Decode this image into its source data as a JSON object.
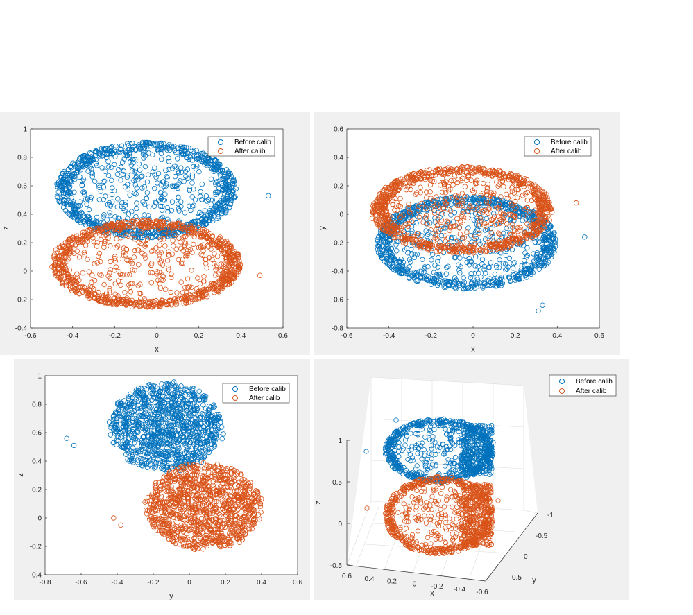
{
  "colors": {
    "before": "#0072BD",
    "after": "#D95319",
    "axis": "#262626",
    "grid": "#dcdcdc"
  },
  "chart_data": [
    {
      "type": "scatter",
      "xlabel": "x",
      "ylabel": "z",
      "xlim": [
        -0.6,
        0.6
      ],
      "ylim": [
        -0.4,
        1.0
      ],
      "xticks": [
        -0.6,
        -0.4,
        -0.2,
        0,
        0.2,
        0.4,
        0.6
      ],
      "yticks": [
        -0.4,
        -0.2,
        0,
        0.2,
        0.4,
        0.6,
        0.8,
        1
      ],
      "legend": {
        "location": "top-right",
        "entries": [
          "Before calib",
          "After calib"
        ]
      },
      "series": [
        {
          "name": "Before calib",
          "shape": "ellipse-ring",
          "center": [
            -0.05,
            0.57
          ],
          "radii": [
            0.42,
            0.33
          ],
          "outliers": [
            [
              0.53,
              0.53
            ],
            [
              -0.44,
              0.7
            ]
          ]
        },
        {
          "name": "After calib",
          "shape": "ellipse-ring",
          "center": [
            -0.05,
            0.05
          ],
          "radii": [
            0.44,
            0.3
          ],
          "outliers": [
            [
              0.49,
              -0.03
            ],
            [
              -0.48,
              0.15
            ]
          ]
        }
      ]
    },
    {
      "type": "scatter",
      "xlabel": "x",
      "ylabel": "y",
      "xlim": [
        -0.6,
        0.6
      ],
      "ylim": [
        -0.8,
        0.6
      ],
      "xticks": [
        -0.6,
        -0.4,
        -0.2,
        0,
        0.2,
        0.4,
        0.6
      ],
      "yticks": [
        -0.8,
        -0.6,
        -0.4,
        -0.2,
        0,
        0.2,
        0.4,
        0.6
      ],
      "legend": {
        "location": "top-right",
        "entries": [
          "Before calib",
          "After calib"
        ]
      },
      "series": [
        {
          "name": "Before calib",
          "shape": "ellipse-ring",
          "center": [
            -0.03,
            -0.2
          ],
          "radii": [
            0.42,
            0.32
          ],
          "outliers": [
            [
              0.53,
              -0.16
            ],
            [
              0.31,
              -0.68
            ],
            [
              0.33,
              -0.64
            ],
            [
              -0.45,
              -0.27
            ]
          ]
        },
        {
          "name": "After calib",
          "shape": "ellipse-ring",
          "center": [
            -0.05,
            0.03
          ],
          "radii": [
            0.42,
            0.3
          ],
          "outliers": [
            [
              0.49,
              0.08
            ],
            [
              -0.48,
              -0.03
            ]
          ]
        }
      ]
    },
    {
      "type": "scatter",
      "xlabel": "y",
      "ylabel": "z",
      "xlim": [
        -0.8,
        0.6
      ],
      "ylim": [
        -0.4,
        1.0
      ],
      "xticks": [
        -0.8,
        -0.6,
        -0.4,
        -0.2,
        0,
        0.2,
        0.4,
        0.6
      ],
      "yticks": [
        -0.4,
        -0.2,
        0,
        0.2,
        0.4,
        0.6,
        0.8,
        1
      ],
      "legend": {
        "location": "top-right",
        "entries": [
          "Before calib",
          "After calib"
        ]
      },
      "series": [
        {
          "name": "Before calib",
          "shape": "ellipse-filled",
          "center": [
            -0.13,
            0.64
          ],
          "radii": [
            0.32,
            0.32
          ],
          "outliers": [
            [
              -0.68,
              0.56
            ],
            [
              -0.64,
              0.51
            ]
          ]
        },
        {
          "name": "After calib",
          "shape": "ellipse-filled",
          "center": [
            0.08,
            0.08
          ],
          "radii": [
            0.33,
            0.31
          ],
          "outliers": [
            [
              -0.42,
              0.0
            ],
            [
              -0.38,
              -0.05
            ]
          ]
        }
      ]
    },
    {
      "type": "scatter",
      "projection": "3d",
      "xlabel": "x",
      "ylabel": "y",
      "zlabel": "z",
      "xticks": [
        "0.6",
        "0.4",
        "0.2",
        "0",
        "-0.2",
        "-0.4",
        "-0.6"
      ],
      "yticks": [
        "-1",
        "-0.5",
        "0",
        "0.5"
      ],
      "zticks": [
        "-0.5",
        "0",
        "0.5",
        "1"
      ],
      "legend": {
        "location": "top-right",
        "entries": [
          "Before calib",
          "After calib"
        ]
      },
      "series": [
        {
          "name": "Before calib",
          "shape": "ellipse-ring"
        },
        {
          "name": "After calib",
          "shape": "ellipse-ring"
        }
      ]
    }
  ]
}
